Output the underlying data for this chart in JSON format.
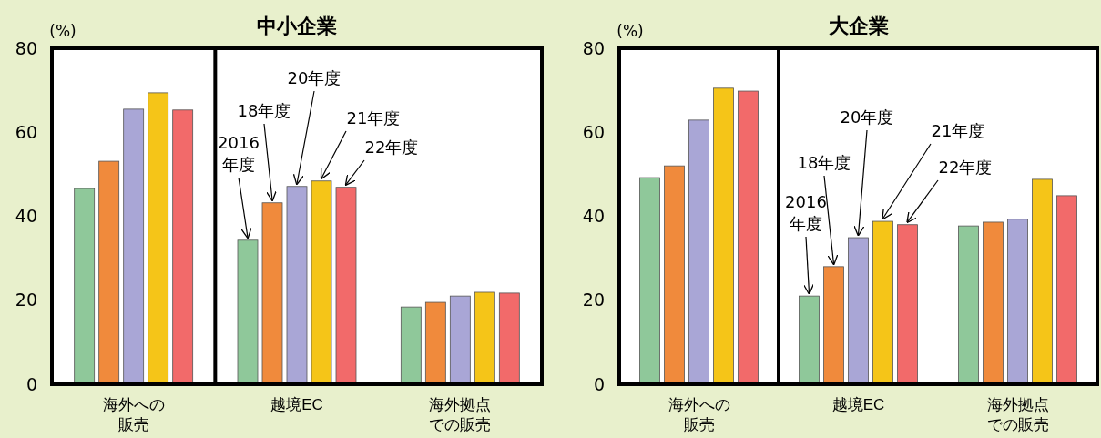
{
  "chart_data": [
    {
      "type": "bar",
      "title": "中小企業",
      "ylabel": "(%)",
      "categories": [
        "海外への販売",
        "越境EC",
        "海外拠点での販売"
      ],
      "ylim": [
        0,
        80
      ],
      "yticks": [
        0,
        20,
        40,
        60,
        80
      ],
      "grid": false,
      "series": [
        {
          "name": "2016年度",
          "color": "#8fc89a",
          "values": [
            46.6,
            34.3,
            18.4
          ]
        },
        {
          "name": "18年度",
          "color": "#f08a3c",
          "values": [
            53.1,
            43.2,
            19.5
          ]
        },
        {
          "name": "20年度",
          "color": "#a9a6d6",
          "values": [
            65.5,
            47.1,
            21
          ]
        },
        {
          "name": "21年度",
          "color": "#f5c518",
          "values": [
            69.4,
            48.4,
            21.9
          ]
        },
        {
          "name": "22年度",
          "color": "#f26a6a",
          "values": [
            65.3,
            46.9,
            21.7
          ]
        }
      ]
    },
    {
      "type": "bar",
      "title": "大企業",
      "ylabel": "(%)",
      "categories": [
        "海外への販売",
        "越境EC",
        "海外拠点での販売"
      ],
      "ylim": [
        0,
        80
      ],
      "yticks": [
        0,
        20,
        40,
        60,
        80
      ],
      "grid": false,
      "series": [
        {
          "name": "2016年度",
          "color": "#8fc89a",
          "values": [
            49.2,
            21,
            37.7
          ]
        },
        {
          "name": "18年度",
          "color": "#f08a3c",
          "values": [
            52,
            28,
            38.6
          ]
        },
        {
          "name": "20年度",
          "color": "#a9a6d6",
          "values": [
            62.9,
            34.9,
            39.3
          ]
        },
        {
          "name": "21年度",
          "color": "#f5c518",
          "values": [
            70.5,
            38.8,
            48.8
          ]
        },
        {
          "name": "22年度",
          "color": "#f26a6a",
          "values": [
            69.8,
            38,
            44.9
          ]
        }
      ]
    }
  ]
}
